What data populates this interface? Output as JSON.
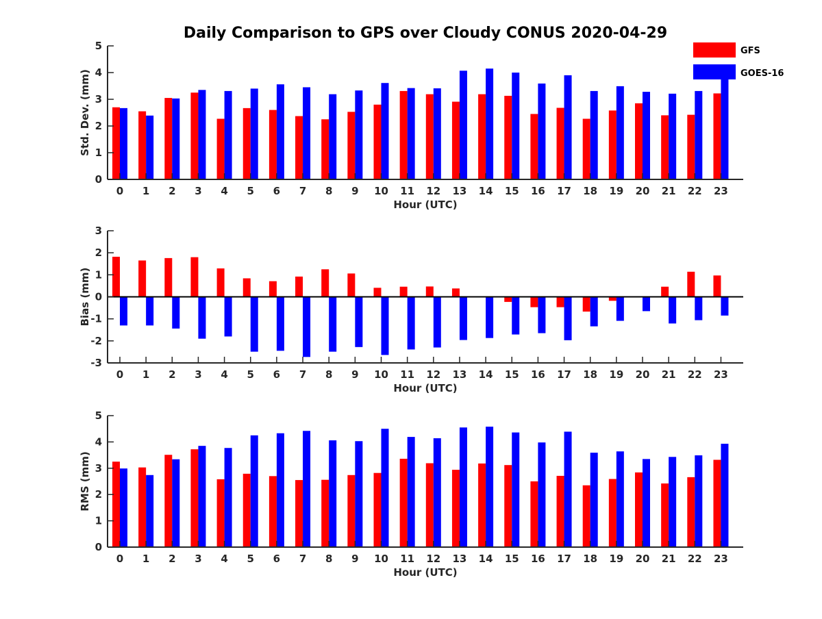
{
  "chart_data": {
    "title": "Daily Comparison to GPS over Cloudy CONUS 2020-04-29",
    "legend": {
      "location": "top-right",
      "entries": [
        {
          "name": "GFS",
          "color": "#ff0000"
        },
        {
          "name": "GOES-16",
          "color": "#0000ff"
        }
      ]
    },
    "panels": [
      {
        "type": "bar",
        "xlabel": "Hour (UTC)",
        "ylabel": "Std. Dev. (mm)",
        "ylim": [
          0,
          5
        ],
        "yticks": [
          0,
          1,
          2,
          3,
          4,
          5
        ],
        "categories": [
          "0",
          "1",
          "2",
          "3",
          "4",
          "5",
          "6",
          "7",
          "8",
          "9",
          "10",
          "11",
          "12",
          "13",
          "14",
          "15",
          "16",
          "17",
          "18",
          "19",
          "20",
          "21",
          "22",
          "23"
        ],
        "series": [
          {
            "name": "GFS",
            "color": "#ff0000",
            "values": [
              2.7,
              2.55,
              3.05,
              3.25,
              2.27,
              2.67,
              2.6,
              2.37,
              2.25,
              2.53,
              2.8,
              3.31,
              3.19,
              2.91,
              3.19,
              3.13,
              2.45,
              2.68,
              2.27,
              2.58,
              2.85,
              2.4,
              2.42,
              3.22
            ]
          },
          {
            "name": "GOES-16",
            "color": "#0000ff",
            "values": [
              2.67,
              2.39,
              3.03,
              3.35,
              3.31,
              3.4,
              3.56,
              3.45,
              3.19,
              3.33,
              3.61,
              3.42,
              3.41,
              4.07,
              4.15,
              4.0,
              3.59,
              3.9,
              3.31,
              3.49,
              3.28,
              3.21,
              3.31,
              3.8
            ]
          }
        ]
      },
      {
        "type": "bar",
        "xlabel": "Hour (UTC)",
        "ylabel": "Bias (mm)",
        "ylim": [
          -3,
          3
        ],
        "yticks": [
          -3,
          -2,
          -1,
          0,
          1,
          2,
          3
        ],
        "categories": [
          "0",
          "1",
          "2",
          "3",
          "4",
          "5",
          "6",
          "7",
          "8",
          "9",
          "10",
          "11",
          "12",
          "13",
          "14",
          "15",
          "16",
          "17",
          "18",
          "19",
          "20",
          "21",
          "22",
          "23"
        ],
        "series": [
          {
            "name": "GFS",
            "color": "#ff0000",
            "values": [
              1.82,
              1.65,
              1.76,
              1.8,
              1.29,
              0.84,
              0.71,
              0.92,
              1.25,
              1.06,
              0.41,
              0.46,
              0.47,
              0.38,
              0.0,
              -0.23,
              -0.47,
              -0.47,
              -0.67,
              -0.18,
              0.0,
              0.46,
              1.14,
              0.97
            ]
          },
          {
            "name": "GOES-16",
            "color": "#0000ff",
            "values": [
              -1.3,
              -1.3,
              -1.44,
              -1.9,
              -1.8,
              -2.49,
              -2.45,
              -2.73,
              -2.49,
              -2.28,
              -2.64,
              -2.39,
              -2.3,
              -1.96,
              -1.87,
              -1.71,
              -1.65,
              -1.97,
              -1.34,
              -1.09,
              -0.65,
              -1.21,
              -1.06,
              -0.85
            ]
          }
        ]
      },
      {
        "type": "bar",
        "xlabel": "Hour (UTC)",
        "ylabel": "RMS (mm)",
        "ylim": [
          0,
          5
        ],
        "yticks": [
          0,
          1,
          2,
          3,
          4,
          5
        ],
        "categories": [
          "0",
          "1",
          "2",
          "3",
          "4",
          "5",
          "6",
          "7",
          "8",
          "9",
          "10",
          "11",
          "12",
          "13",
          "14",
          "15",
          "16",
          "17",
          "18",
          "19",
          "20",
          "21",
          "22",
          "23"
        ],
        "series": [
          {
            "name": "GFS",
            "color": "#ff0000",
            "values": [
              3.25,
              3.03,
              3.51,
              3.72,
              2.58,
              2.79,
              2.7,
              2.55,
              2.56,
              2.74,
              2.82,
              3.36,
              3.19,
              2.94,
              3.18,
              3.12,
              2.5,
              2.71,
              2.35,
              2.59,
              2.84,
              2.42,
              2.66,
              3.32
            ]
          },
          {
            "name": "GOES-16",
            "color": "#0000ff",
            "values": [
              2.99,
              2.74,
              3.34,
              3.85,
              3.77,
              4.25,
              4.33,
              4.42,
              4.06,
              4.03,
              4.5,
              4.19,
              4.14,
              4.55,
              4.58,
              4.36,
              3.98,
              4.39,
              3.59,
              3.64,
              3.35,
              3.43,
              3.49,
              3.93
            ]
          }
        ]
      }
    ]
  }
}
